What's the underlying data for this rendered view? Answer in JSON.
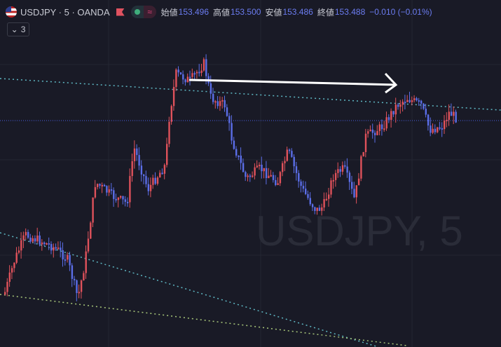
{
  "header": {
    "symbol": "USDJPY · 5 · OANDA",
    "open_label": "始値",
    "open": "153.496",
    "high_label": "高値",
    "high": "153.500",
    "low_label": "安値",
    "low": "153.486",
    "close_label": "終値",
    "close": "153.488",
    "change": "−0.010 (−0.01%)",
    "status_icon": "market-open-dot",
    "delay_icon": "approx-icon"
  },
  "indicators_toggle": {
    "count": "3"
  },
  "watermark": "USDJPY, 5",
  "colors": {
    "up": "#e0525b",
    "down": "#5b6ee8",
    "background": "#191a26",
    "accent": "#6b7cf0"
  }
}
